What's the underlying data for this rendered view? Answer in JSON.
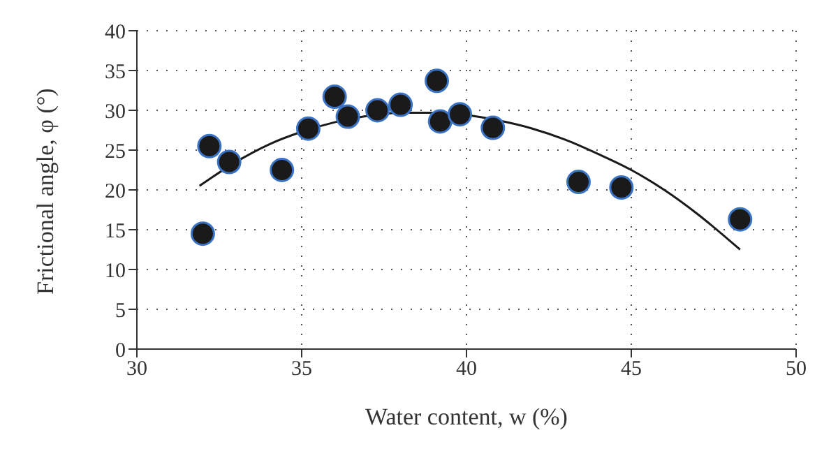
{
  "chart_data": {
    "type": "scatter",
    "xlabel": "Water content, w (%)",
    "ylabel": "Frictional angle, φ (°)",
    "xlim": [
      30,
      50
    ],
    "xticks": [
      30,
      35,
      40,
      45,
      50
    ],
    "ylim": [
      0,
      40
    ],
    "yticks": [
      0,
      5,
      10,
      15,
      20,
      25,
      30,
      35,
      40
    ],
    "grid": true,
    "series": [
      {
        "marker": "circle",
        "color": "#1a1a1a",
        "x": [
          32,
          32.2,
          32.8,
          34.4,
          35.2,
          36,
          36.4,
          37.3,
          38,
          39.1,
          39.2,
          39.8,
          40.8,
          43.4,
          44.7,
          48.3
        ],
        "values": [
          14.5,
          25.5,
          23.5,
          22.5,
          27.7,
          31.7,
          29.2,
          30,
          30.7,
          33.7,
          28.6,
          29.5,
          27.8,
          21,
          20.3,
          16.3
        ]
      },
      {
        "type": "line",
        "marker": "none",
        "line_style": "solid",
        "color": "#1a1a1a",
        "x": [
          31.9,
          33,
          34,
          35,
          36,
          37,
          38,
          39,
          40,
          41,
          42,
          43,
          44,
          45,
          46,
          47,
          48.3
        ],
        "values": [
          20.5,
          23.5,
          25.7,
          27.3,
          28.5,
          29.3,
          29.7,
          29.7,
          29.4,
          28.7,
          27.7,
          26.3,
          24.5,
          22.5,
          20,
          17,
          12.5
        ]
      }
    ]
  }
}
